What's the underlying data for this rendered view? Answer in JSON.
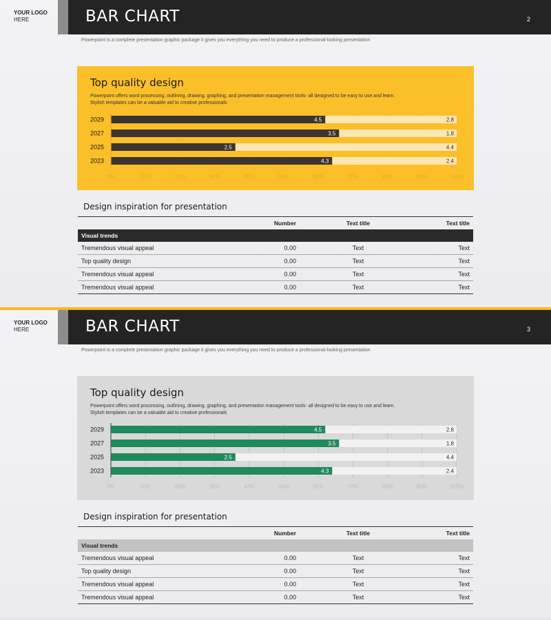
{
  "slides": [
    {
      "logo_line1": "YOUR LOGO",
      "logo_line2": "HERE",
      "title": "BAR CHART",
      "page_number": "2",
      "subtitle": "Powerpoint is a complete presentation graphic package it gives you everything you need to produce a professional-looking presentation",
      "panel_title": "Top quality design",
      "panel_desc_1": "Powerpoint offers word processing, outlining, drawing, graphing, and presentation management tools- all designed to be easy to use and learn.",
      "panel_desc_2": "Stylish templates can be a valuable aid to creative professionals",
      "section_title": "Design inspiration for presentation",
      "table": {
        "headers": [
          "",
          "Number",
          "Text title",
          "Text title"
        ],
        "group": "Visual trends",
        "rows": [
          [
            "Tremendous visual appeal",
            "0.00",
            "Text",
            "Text"
          ],
          [
            "Top quality design",
            "0.00",
            "Text",
            "Text"
          ],
          [
            "Tremendous visual appeal",
            "0.00",
            "Text",
            "Text"
          ],
          [
            "Tremendous visual appeal",
            "0.00",
            "Text",
            "Text"
          ]
        ]
      },
      "colors": {
        "panel": "#fbbf2a",
        "bar_main": "#3b3430",
        "bar_rest": "#fde6b2",
        "axis": "#f3a524",
        "tick_text": "#f1a62b",
        "label_main": "#ffffff",
        "label_rest": "#333333"
      }
    },
    {
      "logo_line1": "YOUR LOGO",
      "logo_line2": "HERE",
      "title": "BAR CHART",
      "page_number": "3",
      "subtitle": "Powerpoint is a complete presentation graphic package it gives you everything you need to produce a professional-looking presentation",
      "panel_title": "Top quality design",
      "panel_desc_1": "Powerpoint offers word processing, outlining, drawing, graphing, and presentation management tools- all designed to be easy to use and learn.",
      "panel_desc_2": "Stylish templates can be a valuable aid to creative professionals",
      "section_title": "Design inspiration for presentation",
      "table": {
        "headers": [
          "",
          "Number",
          "Text title",
          "Text title"
        ],
        "group": "Visual trends",
        "rows": [
          [
            "Tremendous visual appeal",
            "0.00",
            "Text",
            "Text"
          ],
          [
            "Top quality design",
            "0.00",
            "Text",
            "Text"
          ],
          [
            "Tremendous visual appeal",
            "0.00",
            "Text",
            "Text"
          ],
          [
            "Tremendous visual appeal",
            "0.00",
            "Text",
            "Text"
          ]
        ]
      },
      "colors": {
        "panel": "#d9d9da",
        "bar_main": "#1f8a5b",
        "bar_rest": "#f2f2f2",
        "axis": "#555555",
        "tick_text": "#bdbdbd",
        "label_main": "#ffffff",
        "label_rest": "#333333"
      }
    }
  ],
  "chart_data": [
    {
      "type": "bar",
      "orientation": "horizontal",
      "stacked": true,
      "categories": [
        "2029",
        "2027",
        "2025",
        "2023"
      ],
      "series": [
        {
          "values": [
            4.5,
            3.5,
            2.5,
            4.3
          ]
        },
        {
          "values": [
            2.8,
            1.8,
            4.4,
            2.4
          ]
        }
      ],
      "primary_share_percent": [
        62,
        66,
        36,
        64
      ],
      "xlim": [
        0,
        100
      ],
      "xticks": [
        "0%",
        "10%",
        "20%",
        "30%",
        "40%",
        "50%",
        "60%",
        "70%",
        "80%",
        "90%",
        "100%"
      ]
    },
    {
      "type": "bar",
      "orientation": "horizontal",
      "stacked": true,
      "categories": [
        "2029",
        "2027",
        "2025",
        "2023"
      ],
      "series": [
        {
          "values": [
            4.5,
            3.5,
            2.5,
            4.3
          ]
        },
        {
          "values": [
            2.8,
            1.8,
            4.4,
            2.4
          ]
        }
      ],
      "primary_share_percent": [
        62,
        66,
        36,
        64
      ],
      "xlim": [
        0,
        100
      ],
      "xticks": [
        "0%",
        "10%",
        "20%",
        "30%",
        "40%",
        "50%",
        "60%",
        "70%",
        "80%",
        "90%",
        "100%"
      ]
    }
  ]
}
